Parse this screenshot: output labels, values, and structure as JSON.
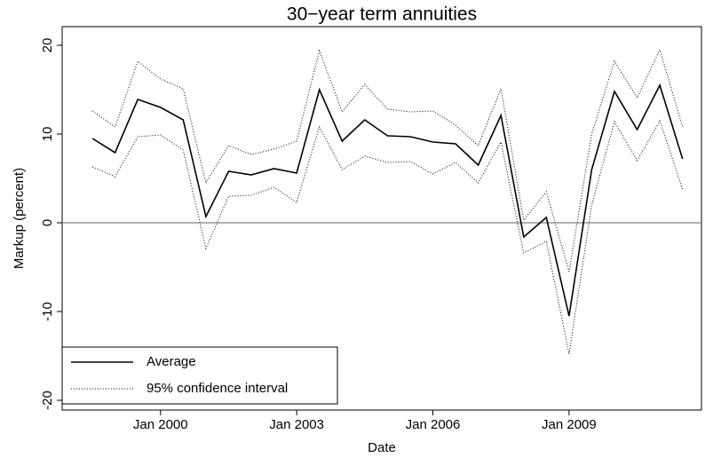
{
  "chart_data": {
    "type": "line",
    "title": "30−year term annuities",
    "x_label": "Date",
    "y_label": "Markup (percent)",
    "x": [
      "1998-07",
      "1999-01",
      "1999-07",
      "2000-01",
      "2000-07",
      "2001-01",
      "2001-07",
      "2002-01",
      "2002-07",
      "2003-01",
      "2003-07",
      "2004-01",
      "2004-07",
      "2005-01",
      "2005-07",
      "2006-01",
      "2006-07",
      "2007-01",
      "2007-07",
      "2008-01",
      "2008-07",
      "2009-01",
      "2009-07",
      "2010-01",
      "2010-07",
      "2011-01",
      "2011-07"
    ],
    "series": [
      {
        "name": "Average",
        "color": "#000000",
        "values": [
          9.5,
          7.9,
          13.9,
          13.0,
          11.6,
          0.7,
          5.8,
          5.4,
          6.1,
          5.6,
          15.0,
          9.2,
          11.6,
          9.8,
          9.7,
          9.1,
          8.9,
          6.5,
          12.1,
          -1.6,
          0.6,
          -10.5,
          6.0,
          14.8,
          10.5,
          15.5,
          7.2
        ]
      },
      {
        "name": "95% confidence interval",
        "color": "#000000",
        "upper": [
          12.6,
          10.8,
          18.2,
          16.2,
          15.1,
          4.5,
          8.7,
          7.7,
          8.3,
          9.2,
          19.4,
          12.5,
          15.6,
          12.8,
          12.5,
          12.6,
          11.0,
          8.7,
          15.1,
          0.3,
          3.5,
          -5.5,
          10.0,
          18.2,
          14.1,
          19.5,
          10.8
        ],
        "lower": [
          6.3,
          5.2,
          9.7,
          9.9,
          8.2,
          -2.9,
          3.0,
          3.1,
          4.0,
          2.3,
          10.8,
          6.0,
          7.5,
          6.8,
          6.9,
          5.5,
          6.8,
          4.5,
          9.1,
          -3.4,
          -2.1,
          -14.8,
          2.0,
          11.4,
          7.0,
          11.5,
          3.8
        ]
      }
    ],
    "xlim": [
      "1997-11",
      "2011-12"
    ],
    "xticks": [
      {
        "value": "2000-01",
        "label": "Jan 2000"
      },
      {
        "value": "2003-01",
        "label": "Jan 2003"
      },
      {
        "value": "2006-01",
        "label": "Jan 2006"
      },
      {
        "value": "2009-01",
        "label": "Jan 2009"
      }
    ],
    "ylim": [
      -21.1,
      22.1
    ],
    "yticks": [
      -20,
      -10,
      0,
      10,
      20
    ],
    "reference_line": 0,
    "reference_color": "#808080",
    "legend": "lower-left"
  }
}
